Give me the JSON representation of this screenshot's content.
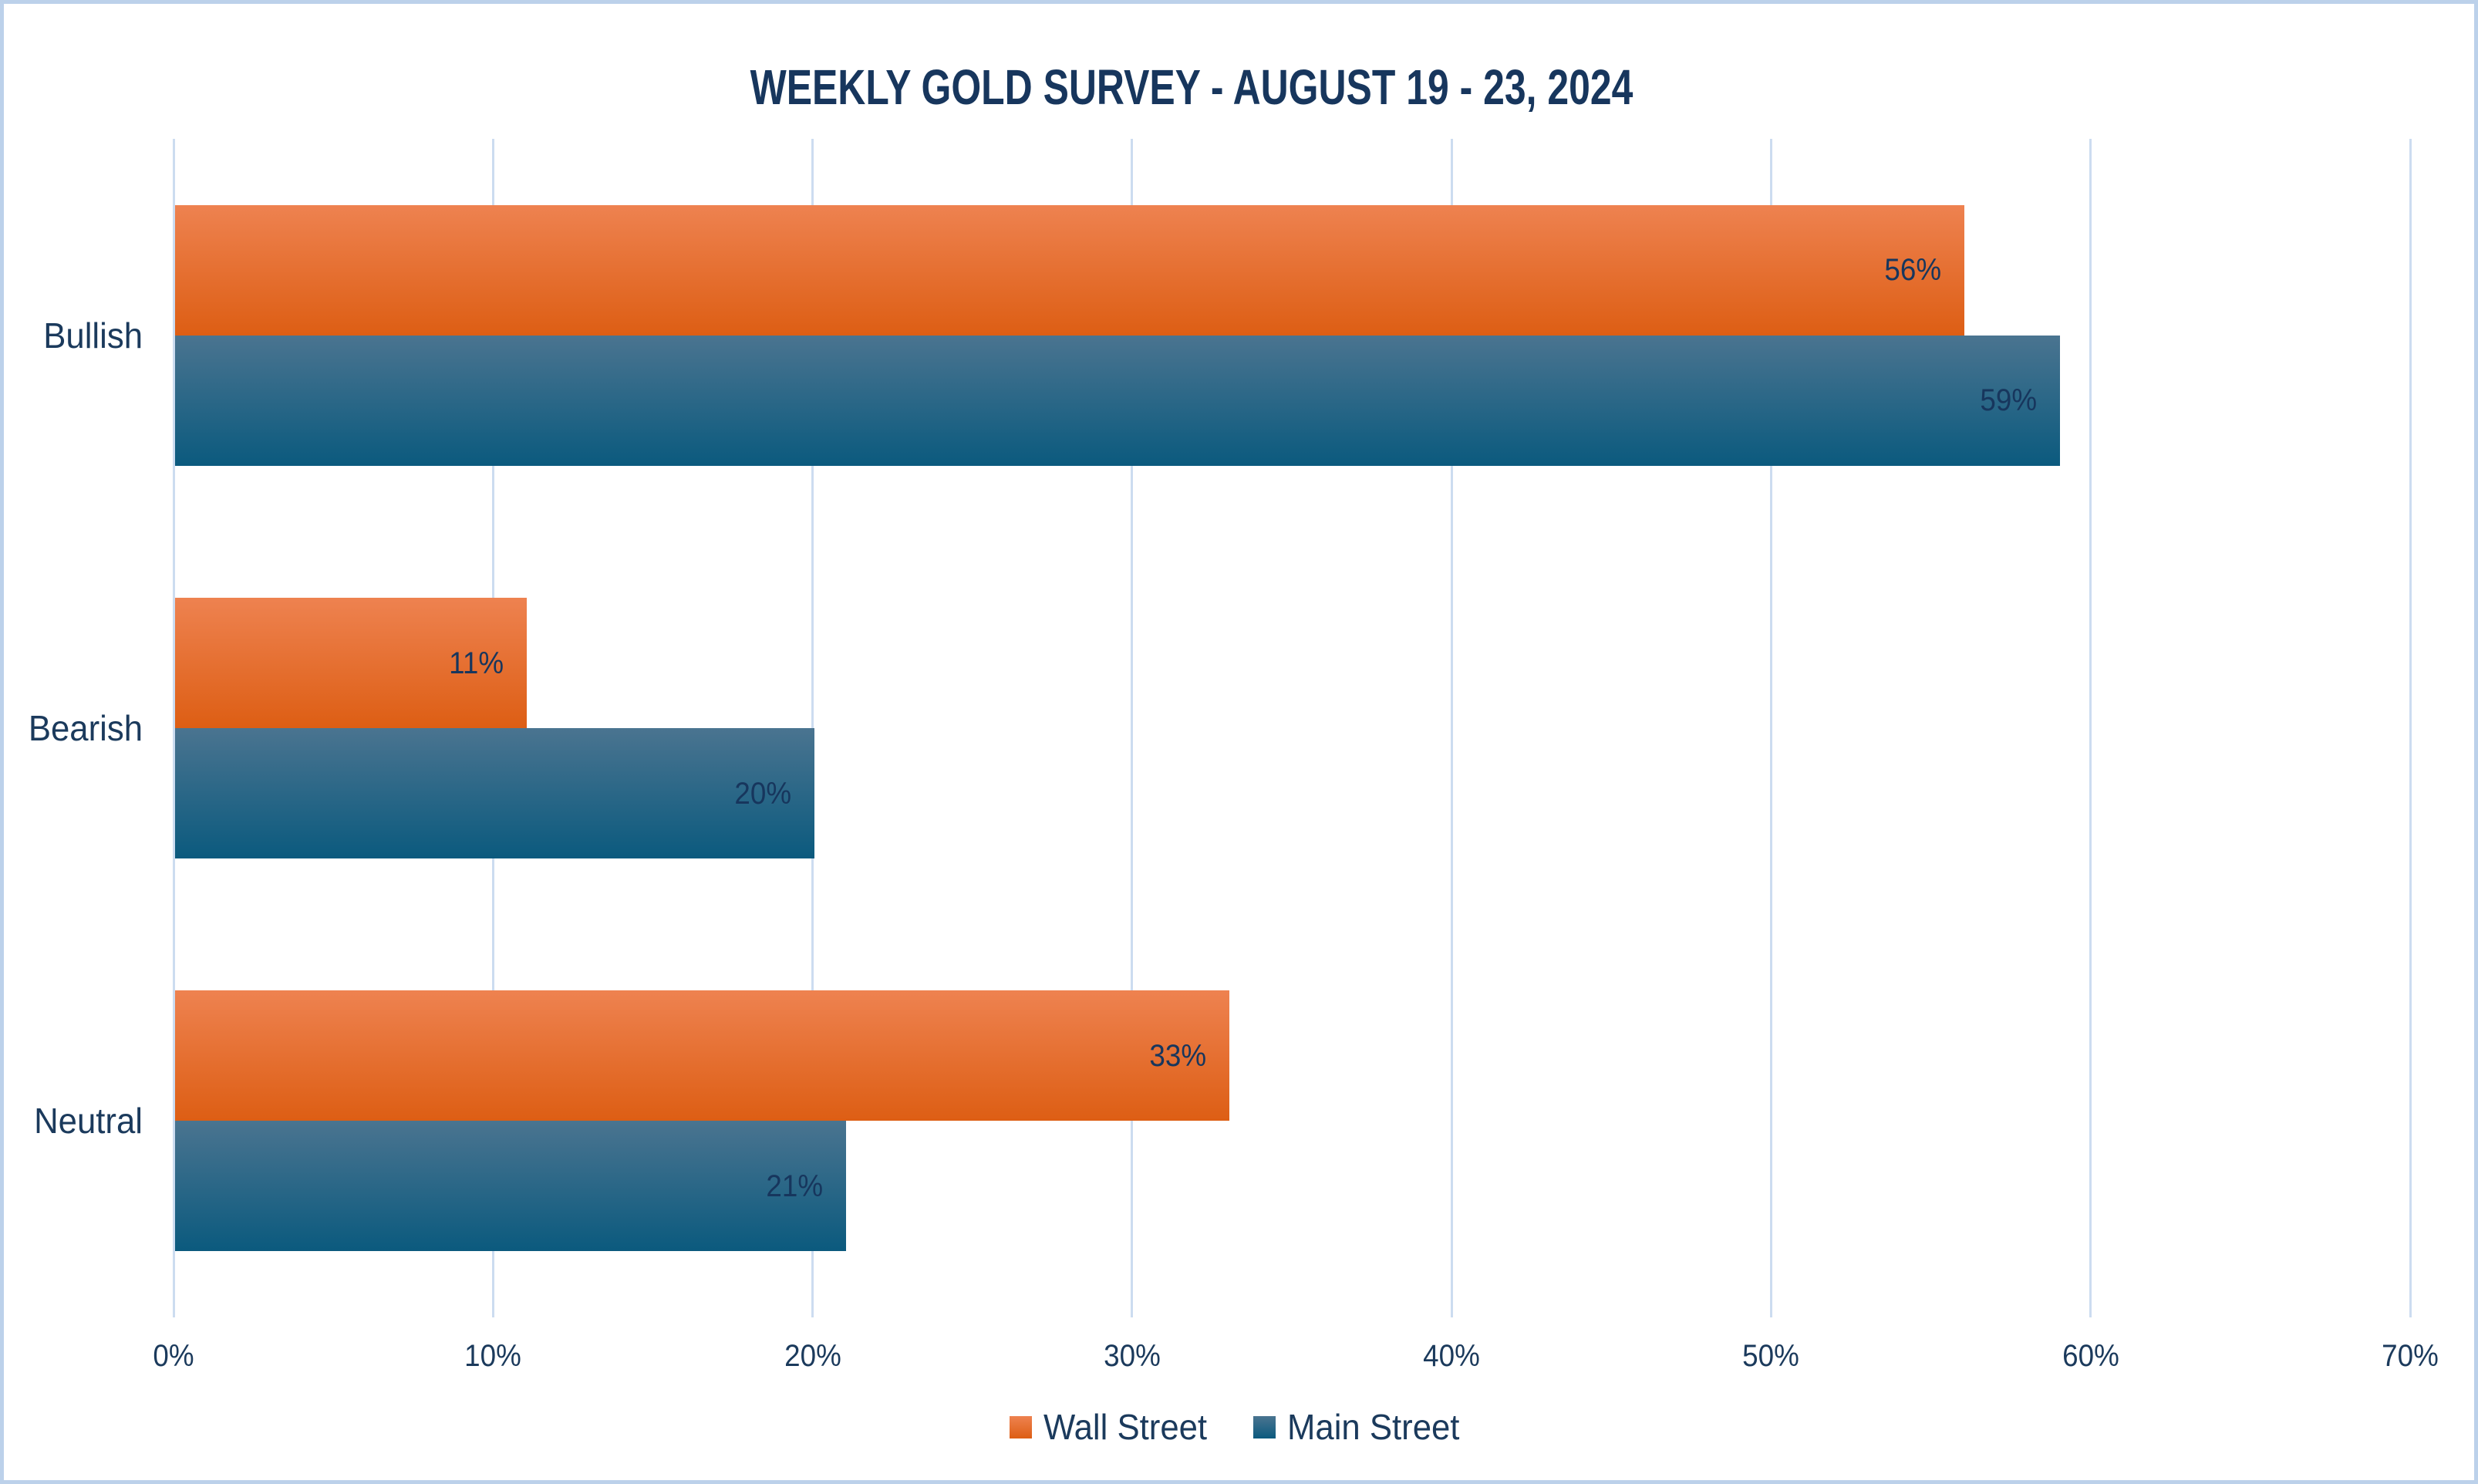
{
  "colors": {
    "text_navy": "#1b3a5c",
    "title_navy": "#17365d",
    "frame_border": "#bcd1ea",
    "gridline": "#ccdcf0",
    "wall_street_orange_top": "#ee8250",
    "wall_street_orange_bottom": "#dd5e14",
    "main_street_blue_top": "#4a7490",
    "main_street_blue_bottom": "#0b5a7e"
  },
  "chart_data": {
    "type": "bar",
    "orientation": "horizontal",
    "title": "WEEKLY GOLD SURVEY - AUGUST 19 - 23, 2024",
    "categories": [
      "Bullish",
      "Bearish",
      "Neutral"
    ],
    "series": [
      {
        "name": "Wall Street",
        "color_top": "#ee8250",
        "color_bottom": "#dd5e14",
        "values": [
          56,
          11,
          33
        ]
      },
      {
        "name": "Main Street",
        "color_top": "#4a7490",
        "color_bottom": "#0b5a7e",
        "values": [
          59,
          20,
          21
        ]
      }
    ],
    "value_suffix": "%",
    "xlabel": "",
    "ylabel": "",
    "xlim": [
      0,
      70
    ],
    "xtick_values": [
      0,
      10,
      20,
      30,
      40,
      50,
      60,
      70
    ],
    "xticks": [
      "0%",
      "10%",
      "20%",
      "30%",
      "40%",
      "50%",
      "60%",
      "70%"
    ],
    "grid": "vertical-only",
    "legend_position": "bottom-center",
    "data_label_position": "inside-end"
  }
}
